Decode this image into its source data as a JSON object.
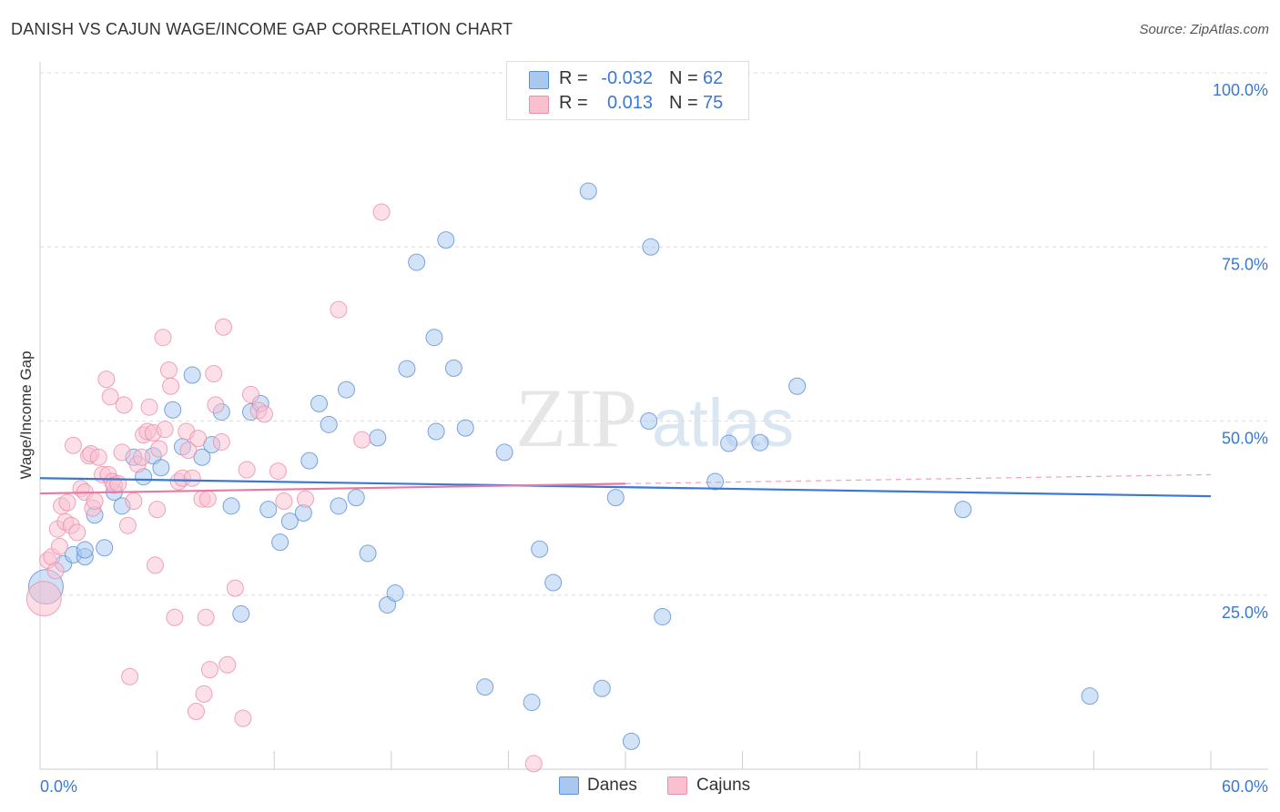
{
  "title": "DANISH VS CAJUN WAGE/INCOME GAP CORRELATION CHART",
  "source": "Source: ZipAtlas.com",
  "watermark": {
    "zip": "ZIP",
    "atlas": "atlas"
  },
  "legend": {
    "rows": [
      {
        "r_label": "R =",
        "r_value": "-0.032",
        "n_label": "N =",
        "n_value": "62",
        "color": "#a8c8f0",
        "border": "#5b8fd8"
      },
      {
        "r_label": "R =",
        "r_value": "0.013",
        "n_label": "N =",
        "n_value": "75",
        "color": "#f9c0d0",
        "border": "#ea8fab"
      }
    ]
  },
  "bottom_legend": {
    "danes": "Danes",
    "cajuns": "Cajuns"
  },
  "colors": {
    "danes_fill": "#a8c8f0",
    "danes_stroke": "#5b8fd8",
    "danes_line": "#3a78d4",
    "cajuns_fill": "#f9c0d0",
    "cajuns_stroke": "#ea8fab",
    "cajuns_line": "#e87aa0",
    "value_text": "#3a78d4",
    "grid": "#dddddd"
  },
  "chart_data": {
    "type": "scatter",
    "title": "DANISH VS CAJUN WAGE/INCOME GAP CORRELATION CHART",
    "xlabel": "",
    "ylabel": "Wage/Income Gap",
    "xlim": [
      0,
      60
    ],
    "ylim": [
      0,
      100
    ],
    "x_tick_labels": [
      "0.0%",
      "60.0%"
    ],
    "y_ticks": [
      25,
      50,
      75,
      100
    ],
    "y_tick_labels": [
      "25.0%",
      "50.0%",
      "75.0%",
      "100.0%"
    ],
    "grid": true,
    "legend_position": "top-center",
    "series": [
      {
        "name": "Danes",
        "r": -0.032,
        "n": 62,
        "trend": {
          "x": [
            0,
            60
          ],
          "y": [
            41.8,
            39.2
          ]
        },
        "points": [
          {
            "x": 0.3,
            "y": 26.2,
            "big": true
          },
          {
            "x": 1.2,
            "y": 29.5
          },
          {
            "x": 1.7,
            "y": 30.8
          },
          {
            "x": 2.3,
            "y": 30.5
          },
          {
            "x": 2.3,
            "y": 31.5
          },
          {
            "x": 2.8,
            "y": 36.5
          },
          {
            "x": 3.3,
            "y": 31.8
          },
          {
            "x": 3.8,
            "y": 39.8
          },
          {
            "x": 4.2,
            "y": 37.8
          },
          {
            "x": 4.8,
            "y": 44.8
          },
          {
            "x": 5.3,
            "y": 42.0
          },
          {
            "x": 5.8,
            "y": 45.0
          },
          {
            "x": 6.2,
            "y": 43.3
          },
          {
            "x": 6.8,
            "y": 51.6
          },
          {
            "x": 7.3,
            "y": 46.3
          },
          {
            "x": 7.8,
            "y": 56.6
          },
          {
            "x": 8.3,
            "y": 44.8
          },
          {
            "x": 8.8,
            "y": 46.6
          },
          {
            "x": 9.3,
            "y": 51.3
          },
          {
            "x": 9.8,
            "y": 37.8
          },
          {
            "x": 10.3,
            "y": 22.3
          },
          {
            "x": 10.8,
            "y": 51.3
          },
          {
            "x": 11.3,
            "y": 52.5
          },
          {
            "x": 11.7,
            "y": 37.3
          },
          {
            "x": 12.3,
            "y": 32.6
          },
          {
            "x": 12.8,
            "y": 35.6
          },
          {
            "x": 13.5,
            "y": 36.8
          },
          {
            "x": 13.8,
            "y": 44.3
          },
          {
            "x": 14.3,
            "y": 52.5
          },
          {
            "x": 14.8,
            "y": 49.5
          },
          {
            "x": 15.3,
            "y": 37.8
          },
          {
            "x": 15.7,
            "y": 54.5
          },
          {
            "x": 16.2,
            "y": 39.0
          },
          {
            "x": 16.8,
            "y": 31.0
          },
          {
            "x": 17.3,
            "y": 47.6
          },
          {
            "x": 17.8,
            "y": 23.6
          },
          {
            "x": 18.2,
            "y": 25.3
          },
          {
            "x": 18.8,
            "y": 57.5
          },
          {
            "x": 19.3,
            "y": 72.8
          },
          {
            "x": 20.2,
            "y": 62.0
          },
          {
            "x": 20.3,
            "y": 48.5
          },
          {
            "x": 20.8,
            "y": 76.0
          },
          {
            "x": 21.2,
            "y": 57.6
          },
          {
            "x": 21.8,
            "y": 49.0
          },
          {
            "x": 22.8,
            "y": 11.8
          },
          {
            "x": 23.8,
            "y": 45.5
          },
          {
            "x": 25.2,
            "y": 9.6
          },
          {
            "x": 25.6,
            "y": 31.6
          },
          {
            "x": 26.3,
            "y": 26.8
          },
          {
            "x": 28.1,
            "y": 83.0
          },
          {
            "x": 28.8,
            "y": 11.6
          },
          {
            "x": 29.5,
            "y": 39.0
          },
          {
            "x": 30.3,
            "y": 4.0
          },
          {
            "x": 31.2,
            "y": 50.0
          },
          {
            "x": 31.3,
            "y": 75.0
          },
          {
            "x": 31.9,
            "y": 21.9
          },
          {
            "x": 34.6,
            "y": 41.3
          },
          {
            "x": 35.3,
            "y": 46.8
          },
          {
            "x": 36.9,
            "y": 46.9
          },
          {
            "x": 38.8,
            "y": 55.0
          },
          {
            "x": 47.3,
            "y": 37.3
          },
          {
            "x": 53.8,
            "y": 10.5
          }
        ]
      },
      {
        "name": "Cajuns",
        "r": 0.013,
        "n": 75,
        "trend": {
          "x": [
            0,
            30
          ],
          "y": [
            39.6,
            41.0
          ]
        },
        "trend_extension": {
          "x": [
            30,
            60
          ],
          "y": [
            41.0,
            42.3
          ]
        },
        "points": [
          {
            "x": 0.2,
            "y": 24.5,
            "big": true
          },
          {
            "x": 0.4,
            "y": 30.0
          },
          {
            "x": 0.6,
            "y": 30.5
          },
          {
            "x": 0.8,
            "y": 28.5
          },
          {
            "x": 0.9,
            "y": 34.5
          },
          {
            "x": 1.0,
            "y": 32.0
          },
          {
            "x": 1.1,
            "y": 37.8
          },
          {
            "x": 1.3,
            "y": 35.5
          },
          {
            "x": 1.4,
            "y": 38.3
          },
          {
            "x": 1.6,
            "y": 35.0
          },
          {
            "x": 1.7,
            "y": 46.5
          },
          {
            "x": 1.9,
            "y": 34.0
          },
          {
            "x": 2.1,
            "y": 40.3
          },
          {
            "x": 2.3,
            "y": 39.8
          },
          {
            "x": 2.5,
            "y": 45.0
          },
          {
            "x": 2.6,
            "y": 45.3
          },
          {
            "x": 2.7,
            "y": 37.5
          },
          {
            "x": 2.8,
            "y": 38.5
          },
          {
            "x": 3.0,
            "y": 44.8
          },
          {
            "x": 3.2,
            "y": 42.3
          },
          {
            "x": 3.4,
            "y": 56.0
          },
          {
            "x": 3.5,
            "y": 42.3
          },
          {
            "x": 3.6,
            "y": 53.5
          },
          {
            "x": 3.7,
            "y": 41.3
          },
          {
            "x": 3.8,
            "y": 40.8
          },
          {
            "x": 4.0,
            "y": 41.0
          },
          {
            "x": 4.2,
            "y": 45.5
          },
          {
            "x": 4.3,
            "y": 52.3
          },
          {
            "x": 4.5,
            "y": 35.0
          },
          {
            "x": 4.6,
            "y": 13.3
          },
          {
            "x": 4.8,
            "y": 38.5
          },
          {
            "x": 5.0,
            "y": 43.8
          },
          {
            "x": 5.2,
            "y": 44.8
          },
          {
            "x": 5.3,
            "y": 48.0
          },
          {
            "x": 5.5,
            "y": 48.5
          },
          {
            "x": 5.6,
            "y": 52.0
          },
          {
            "x": 5.8,
            "y": 48.3
          },
          {
            "x": 5.9,
            "y": 29.3
          },
          {
            "x": 6.0,
            "y": 37.3
          },
          {
            "x": 6.1,
            "y": 46.0
          },
          {
            "x": 6.3,
            "y": 62.0
          },
          {
            "x": 6.4,
            "y": 48.8
          },
          {
            "x": 6.6,
            "y": 57.3
          },
          {
            "x": 6.7,
            "y": 55.0
          },
          {
            "x": 6.9,
            "y": 21.8
          },
          {
            "x": 7.1,
            "y": 41.3
          },
          {
            "x": 7.3,
            "y": 41.8
          },
          {
            "x": 7.5,
            "y": 48.5
          },
          {
            "x": 7.6,
            "y": 45.8
          },
          {
            "x": 7.8,
            "y": 41.8
          },
          {
            "x": 8.0,
            "y": 8.3
          },
          {
            "x": 8.1,
            "y": 47.5
          },
          {
            "x": 8.3,
            "y": 38.8
          },
          {
            "x": 8.4,
            "y": 10.8
          },
          {
            "x": 8.5,
            "y": 21.8
          },
          {
            "x": 8.6,
            "y": 38.8
          },
          {
            "x": 8.7,
            "y": 14.3
          },
          {
            "x": 8.9,
            "y": 56.8
          },
          {
            "x": 9.0,
            "y": 52.3
          },
          {
            "x": 9.3,
            "y": 47.0
          },
          {
            "x": 9.4,
            "y": 63.5
          },
          {
            "x": 9.6,
            "y": 15.0
          },
          {
            "x": 10.0,
            "y": 26.0
          },
          {
            "x": 10.4,
            "y": 7.3
          },
          {
            "x": 10.6,
            "y": 43.0
          },
          {
            "x": 10.8,
            "y": 53.8
          },
          {
            "x": 11.2,
            "y": 51.5
          },
          {
            "x": 11.5,
            "y": 51.0
          },
          {
            "x": 12.2,
            "y": 42.8
          },
          {
            "x": 12.5,
            "y": 38.5
          },
          {
            "x": 13.6,
            "y": 38.8
          },
          {
            "x": 15.3,
            "y": 66.0
          },
          {
            "x": 16.5,
            "y": 47.3
          },
          {
            "x": 17.5,
            "y": 80.0
          },
          {
            "x": 25.3,
            "y": 0.8
          }
        ]
      }
    ]
  }
}
